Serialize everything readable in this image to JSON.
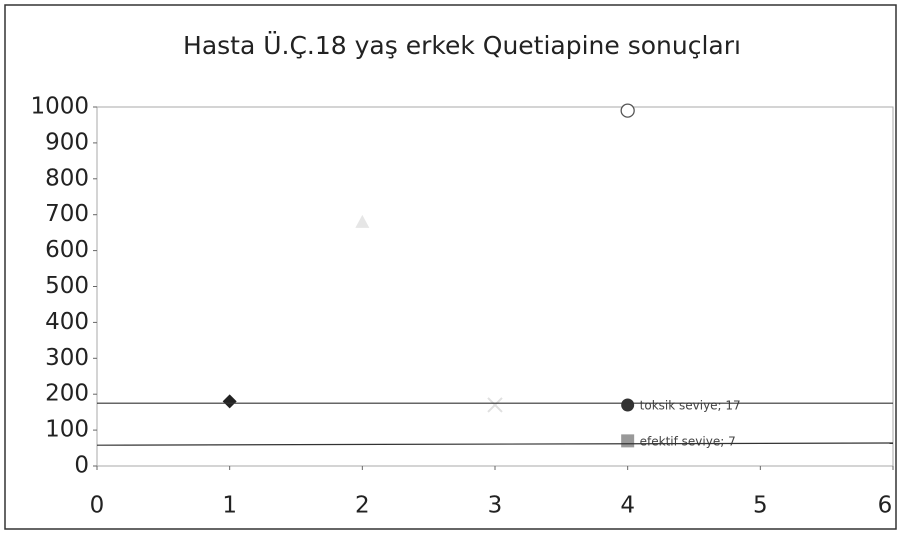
{
  "chart_data": {
    "type": "scatter",
    "title": "Hasta Ü.Ç.18 yaş erkek Quetiapine sonuçları",
    "xlim": [
      0,
      6
    ],
    "xticks": [
      0,
      1,
      2,
      3,
      4,
      5,
      6
    ],
    "ylim": [
      0,
      1000
    ],
    "yticks": [
      0,
      100,
      200,
      300,
      400,
      500,
      600,
      700,
      800,
      900,
      1000
    ],
    "series": [
      {
        "marker": "diamond",
        "color": "#222222",
        "x": [
          1
        ],
        "values": [
          180
        ]
      },
      {
        "marker": "triangle",
        "color": "#e6e6e6",
        "x": [
          2
        ],
        "values": [
          680
        ]
      },
      {
        "marker": "cross",
        "color": "#e0e0e0",
        "x": [
          3
        ],
        "values": [
          170
        ]
      },
      {
        "marker": "open-circle",
        "color": "#555555",
        "x": [
          4
        ],
        "values": [
          990
        ]
      },
      {
        "marker": "circle",
        "color": "#333333",
        "x": [
          4
        ],
        "values": [
          170
        ],
        "annotation": "toksik seviye; 17"
      },
      {
        "marker": "square",
        "color": "#999999",
        "x": [
          4
        ],
        "values": [
          70
        ],
        "annotation": "efektif seviye; 7"
      },
      {
        "marker": "line",
        "color": "#333333",
        "x": [
          0,
          6
        ],
        "values": [
          175,
          175
        ]
      },
      {
        "marker": "line",
        "color": "#333333",
        "x": [
          0,
          6
        ],
        "values": [
          58,
          64
        ]
      }
    ]
  }
}
